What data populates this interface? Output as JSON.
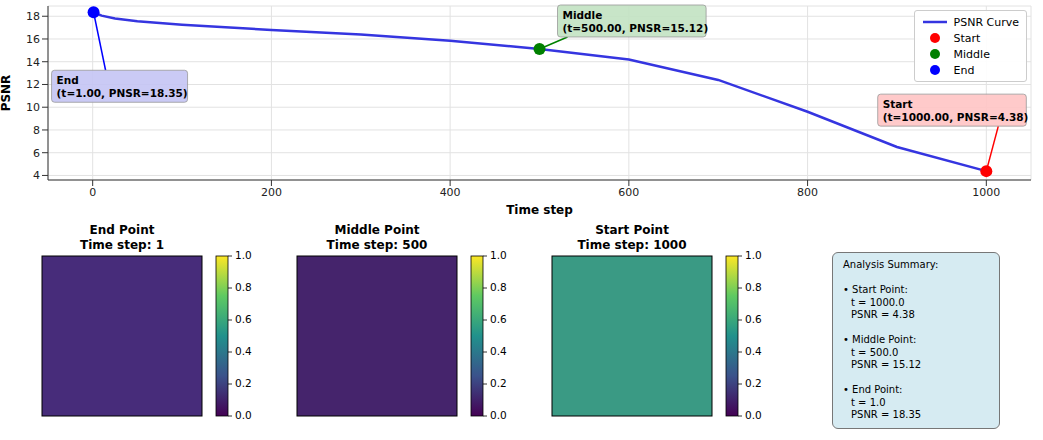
{
  "chart_data": [
    {
      "type": "line",
      "xlabel": "Time step",
      "ylabel": "PSNR",
      "xlim": [
        -50,
        1050
      ],
      "xticks": [
        0,
        200,
        400,
        600,
        800,
        1000
      ],
      "ylim": [
        3.6,
        18.9
      ],
      "yticks": [
        4,
        6,
        8,
        10,
        12,
        14,
        16,
        18
      ],
      "grid": true,
      "legend": "upper right",
      "series": [
        {
          "name": "PSNR Curve",
          "type": "line",
          "color": "#3535e0",
          "line_style": "solid",
          "x": [
            1,
            10,
            25,
            50,
            100,
            200,
            300,
            400,
            500,
            600,
            700,
            800,
            900,
            1000
          ],
          "values": [
            18.35,
            18.05,
            17.8,
            17.55,
            17.25,
            16.8,
            16.4,
            15.85,
            15.12,
            14.2,
            12.4,
            9.6,
            6.5,
            4.38
          ]
        },
        {
          "name": "Start",
          "type": "scatter",
          "marker": "o",
          "color": "#ff0000",
          "x": [
            1000
          ],
          "values": [
            4.38
          ]
        },
        {
          "name": "Middle",
          "type": "scatter",
          "marker": "o",
          "color": "#008000",
          "x": [
            500
          ],
          "values": [
            15.12
          ]
        },
        {
          "name": "End",
          "type": "scatter",
          "marker": "o",
          "color": "#0000ff",
          "x": [
            1
          ],
          "values": [
            18.35
          ]
        }
      ],
      "annotations": [
        {
          "text": "End\n(t=1.00, PNSR=18.35)",
          "x": 1,
          "y": 18.35,
          "color": "#c4c4f4"
        },
        {
          "text": "Middle\n(t=500.00, PNSR=15.12)",
          "x": 500,
          "y": 15.12,
          "color": "#c2e2c2"
        },
        {
          "text": "Start\n(t=1000.00, PNSR=4.38)",
          "x": 1000,
          "y": 4.38,
          "color": "#ffc4c4"
        }
      ]
    },
    {
      "type": "image",
      "title": "End Point",
      "subtitle": "Time step: 1",
      "color": "#472c7a",
      "colorbar": {
        "range": [
          0,
          1
        ],
        "ticks": [
          {
            "value": 0,
            "label": "0.0"
          },
          0.2,
          0.4,
          0.6,
          0.8,
          {
            "value": 1,
            "label": "1.0"
          }
        ]
      }
    },
    {
      "type": "image",
      "title": "Middle Point",
      "subtitle": "Time step: 500",
      "color": "#45246c",
      "colorbar": {
        "range": [
          0,
          1
        ],
        "ticks": [
          {
            "value": 0,
            "label": "0.0"
          },
          0.2,
          0.4,
          0.6,
          0.8,
          {
            "value": 1,
            "label": "1.0"
          }
        ]
      }
    },
    {
      "type": "image",
      "title": "Start Point",
      "subtitle": "Time step: 1000",
      "color": "#3a9a84",
      "colorbar": {
        "range": [
          0,
          1
        ],
        "ticks": [
          {
            "value": 0,
            "label": "0.0"
          },
          0.2,
          0.4,
          0.6,
          0.8,
          {
            "value": 1,
            "label": "1.0"
          }
        ]
      }
    }
  ],
  "summary": {
    "title": "Analysis Summary:",
    "items": [
      {
        "label": "• Start Point:",
        "lines": [
          "t = 1000.0",
          "PSNR = 4.38"
        ]
      },
      {
        "label": "• Middle Point:",
        "lines": [
          "t = 500.0",
          "PSNR = 15.12"
        ]
      },
      {
        "label": "• End Point:",
        "lines": [
          "t = 1.0",
          "PSNR = 18.35"
        ]
      }
    ]
  }
}
